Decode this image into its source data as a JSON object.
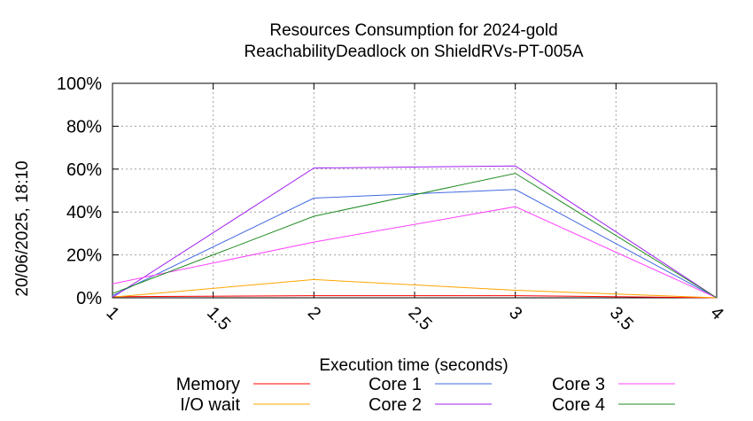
{
  "chart_data": {
    "type": "line",
    "title": [
      "Resources Consumption for 2024-gold",
      "ReachabilityDeadlock on ShieldRVs-PT-005A"
    ],
    "xlabel": "Execution time (seconds)",
    "ylabel": "",
    "side_label": "20/06/2025, 18:10",
    "xlim": [
      1,
      4
    ],
    "ylim": [
      0,
      100
    ],
    "x_ticks": [
      "1",
      "1.5",
      "2",
      "2.5",
      "3",
      "3.5",
      "4"
    ],
    "y_ticks": [
      "0%",
      "20%",
      "40%",
      "60%",
      "80%",
      "100%"
    ],
    "grid": true,
    "legend_position": "bottom",
    "series": [
      {
        "name": "Memory",
        "color": "#ff0000",
        "x": [
          1,
          2,
          3,
          4
        ],
        "y": [
          0.5,
          1.0,
          1.0,
          0
        ]
      },
      {
        "name": "I/O wait",
        "color": "#ffa500",
        "x": [
          1,
          2,
          3,
          4
        ],
        "y": [
          0.3,
          8.5,
          3.5,
          0
        ]
      },
      {
        "name": "Core 1",
        "color": "#4169e1",
        "x": [
          1,
          2,
          3,
          4
        ],
        "y": [
          1.0,
          46.5,
          50.5,
          0
        ]
      },
      {
        "name": "Core 2",
        "color": "#a020f0",
        "x": [
          1,
          2,
          3,
          4
        ],
        "y": [
          0.2,
          60.5,
          61.5,
          0
        ]
      },
      {
        "name": "Core 3",
        "color": "#ff40ff",
        "x": [
          1,
          2,
          3,
          4
        ],
        "y": [
          6.5,
          26.0,
          42.5,
          0
        ]
      },
      {
        "name": "Core 4",
        "color": "#228b22",
        "x": [
          1,
          2,
          3,
          4
        ],
        "y": [
          2.0,
          38.0,
          58.0,
          0
        ]
      }
    ]
  }
}
